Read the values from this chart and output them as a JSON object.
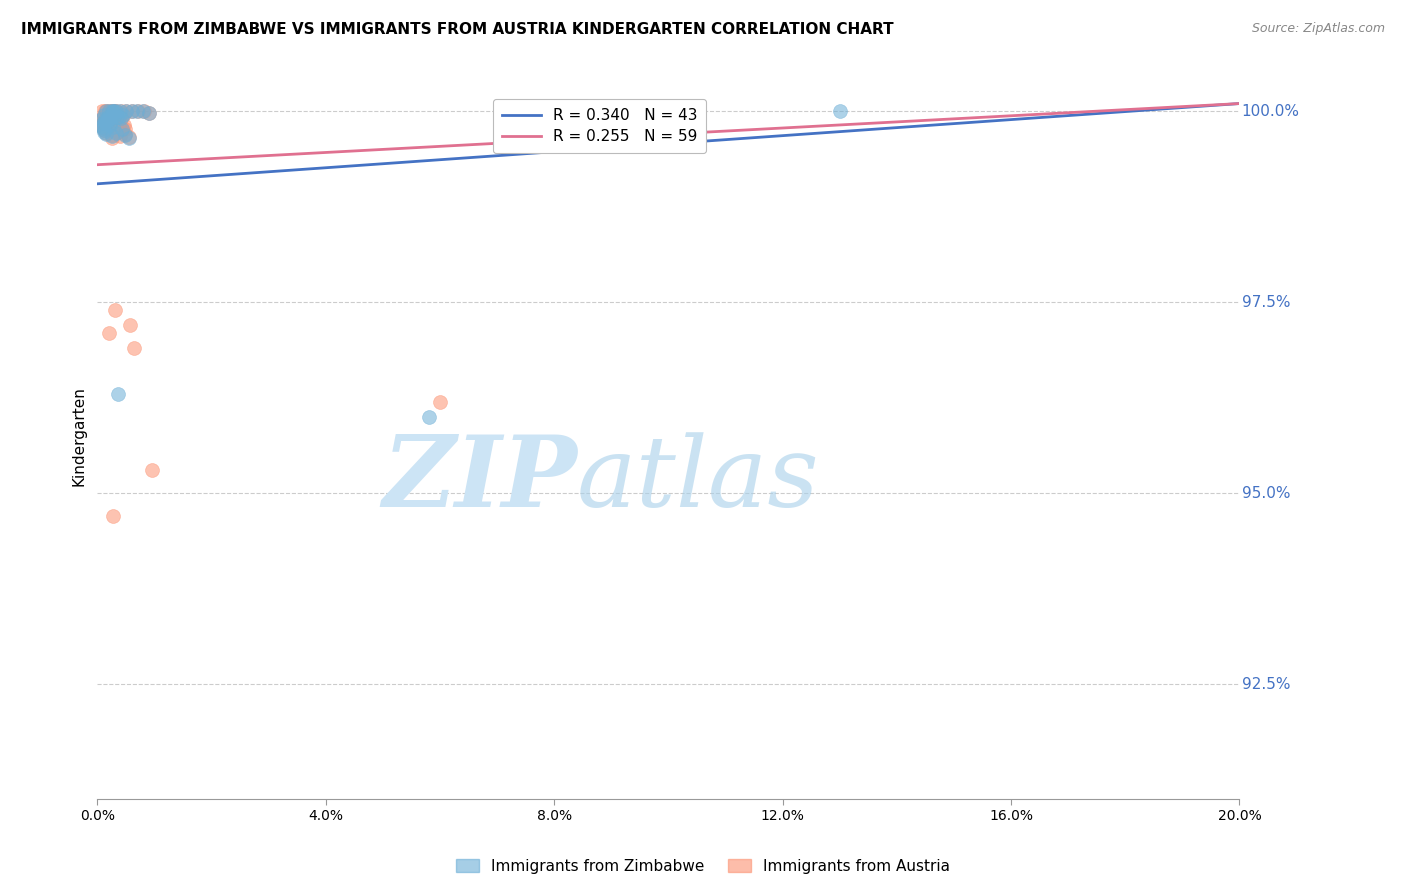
{
  "title": "IMMIGRANTS FROM ZIMBABWE VS IMMIGRANTS FROM AUSTRIA KINDERGARTEN CORRELATION CHART",
  "source": "Source: ZipAtlas.com",
  "ylabel": "Kindergarten",
  "ytick_labels": [
    "100.0%",
    "97.5%",
    "95.0%",
    "92.5%"
  ],
  "ytick_values": [
    1.0,
    0.975,
    0.95,
    0.925
  ],
  "xmin": 0.0,
  "xmax": 0.2,
  "ymin": 0.91,
  "ymax": 1.005,
  "zimbabwe_color": "#6baed6",
  "austria_color": "#fc9272",
  "zimbabwe_label": "Immigrants from Zimbabwe",
  "austria_label": "Immigrants from Austria",
  "zimbabwe_R": 0.34,
  "zimbabwe_N": 43,
  "austria_R": 0.255,
  "austria_N": 59,
  "trendline_zim_color": "#4472c4",
  "trendline_aut_color": "#e07090",
  "watermark_color": "#cce4f5",
  "watermark_color2": "#a8d0ea",
  "grid_color": "#cccccc",
  "axis_color": "#999999",
  "zimbabwe_x": [
    0.0008,
    0.0012,
    0.0015,
    0.001,
    0.002,
    0.0018,
    0.0009,
    0.0025,
    0.0011,
    0.0014,
    0.003,
    0.0022,
    0.0035,
    0.0028,
    0.0016,
    0.001,
    0.0032,
    0.0019,
    0.004,
    0.0013,
    0.0045,
    0.0027,
    0.0021,
    0.0011,
    0.005,
    0.0038,
    0.0023,
    0.006,
    0.0015,
    0.0042,
    0.007,
    0.0033,
    0.0048,
    0.0025,
    0.0055,
    0.008,
    0.0029,
    0.0043,
    0.0037,
    0.009,
    0.13,
    0.0024,
    0.058
  ],
  "zimbabwe_y": [
    0.999,
    0.9995,
    1.0,
    0.9985,
    1.0,
    0.9992,
    0.998,
    1.0,
    0.9975,
    0.9988,
    1.0,
    0.9982,
    0.9993,
    1.0,
    0.9984,
    0.9978,
    1.0,
    0.999,
    1.0,
    0.9986,
    0.9995,
    0.9979,
    0.9988,
    0.9973,
    1.0,
    0.9993,
    0.9984,
    1.0,
    0.997,
    0.9991,
    1.0,
    0.9972,
    0.9969,
    0.9968,
    0.9965,
    1.0,
    0.9994,
    0.9977,
    0.963,
    0.9997,
    1.0,
    0.9991,
    0.96
  ],
  "austria_x": [
    0.0009,
    0.0013,
    0.0016,
    0.001,
    0.0021,
    0.0017,
    0.0009,
    0.0024,
    0.0012,
    0.0015,
    0.0031,
    0.0023,
    0.0036,
    0.0027,
    0.0017,
    0.0011,
    0.0033,
    0.002,
    0.0041,
    0.0014,
    0.0046,
    0.0028,
    0.0022,
    0.0012,
    0.0051,
    0.0039,
    0.0024,
    0.0061,
    0.0016,
    0.0043,
    0.0071,
    0.0034,
    0.0049,
    0.0026,
    0.0056,
    0.0081,
    0.003,
    0.0044,
    0.0038,
    0.0091,
    0.0019,
    0.0029,
    0.0037,
    0.0047,
    0.0011,
    0.0018,
    0.0058,
    0.0031,
    0.0065,
    0.002,
    0.0042,
    0.0026,
    0.0019,
    0.001,
    0.0048,
    0.0039,
    0.0028,
    0.06,
    0.0095
  ],
  "austria_y": [
    1.0,
    1.0,
    1.0,
    0.9988,
    1.0,
    0.9993,
    0.9982,
    1.0,
    0.9978,
    0.999,
    1.0,
    0.9984,
    0.9994,
    1.0,
    0.9986,
    0.998,
    1.0,
    0.9991,
    1.0,
    0.9987,
    0.9996,
    0.9981,
    0.9989,
    0.9975,
    1.0,
    0.9994,
    0.9985,
    1.0,
    0.9971,
    0.9992,
    1.0,
    0.9973,
    0.997,
    0.9969,
    0.9966,
    1.0,
    0.9995,
    0.9978,
    0.998,
    0.9998,
    0.9979,
    0.999,
    0.9973,
    0.9982,
    0.9987,
    0.9976,
    0.972,
    0.974,
    0.969,
    0.971,
    0.9975,
    0.9965,
    0.9985,
    0.9992,
    0.9977,
    0.9968,
    0.947,
    0.962,
    0.953
  ]
}
